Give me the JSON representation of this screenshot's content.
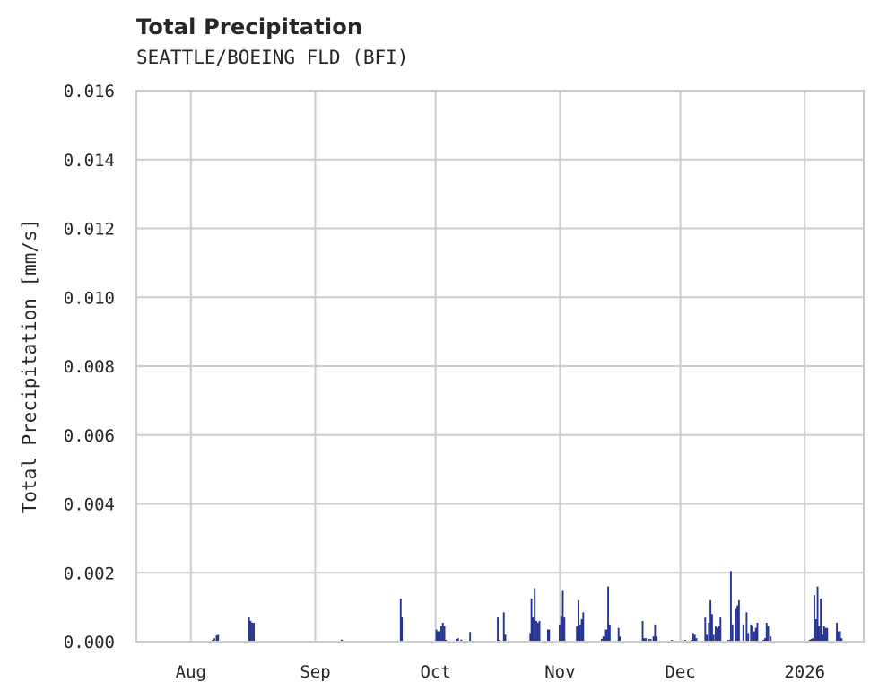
{
  "header": {
    "title": "Total Precipitation",
    "subtitle": "SEATTLE/BOEING FLD (BFI)"
  },
  "colors": {
    "bar": "#253494",
    "grid": "#cccccc",
    "axis": "#cccccc",
    "text": "#262626"
  },
  "chart_data": {
    "type": "bar",
    "title": "Total Precipitation",
    "subtitle": "SEATTLE/BOEING FLD (BFI)",
    "xlabel": "",
    "ylabel": "Total Precipitation [mm/s]",
    "ylim": [
      0,
      0.016
    ],
    "yticks": [
      "0.000",
      "0.002",
      "0.004",
      "0.006",
      "0.008",
      "0.010",
      "0.012",
      "0.014",
      "0.016"
    ],
    "xticks": [
      "Aug",
      "Sep",
      "Oct",
      "Nov",
      "Dec",
      "2026"
    ],
    "x_unit": "days since Aug 1",
    "xlim_days": [
      -13.6,
      167.7
    ],
    "xtick_days": [
      0,
      31,
      61,
      92,
      122,
      153
    ],
    "grid": true,
    "legend": null,
    "points": [
      [
        5.4,
        5e-05
      ],
      [
        5.8,
        0.0001
      ],
      [
        6.4,
        0.00018
      ],
      [
        6.8,
        0.0002
      ],
      [
        14.5,
        0.0007
      ],
      [
        14.9,
        0.0006
      ],
      [
        15.3,
        0.00055
      ],
      [
        15.7,
        0.00055
      ],
      [
        37.6,
        6e-05
      ],
      [
        52.3,
        0.00125
      ],
      [
        52.6,
        0.0007
      ],
      [
        61.2,
        0.00035
      ],
      [
        61.6,
        0.0003
      ],
      [
        62.0,
        0.0003
      ],
      [
        62.4,
        0.00045
      ],
      [
        62.8,
        0.00055
      ],
      [
        63.2,
        0.00045
      ],
      [
        63.6,
        5e-05
      ],
      [
        66.2,
        8e-05
      ],
      [
        66.6,
        0.0001
      ],
      [
        67.4,
        6e-05
      ],
      [
        69.6,
        0.00028
      ],
      [
        76.5,
        0.0007
      ],
      [
        76.9,
        5e-05
      ],
      [
        78.0,
        0.00085
      ],
      [
        78.4,
        0.0002
      ],
      [
        84.6,
        0.00025
      ],
      [
        84.9,
        0.00125
      ],
      [
        85.3,
        0.0007
      ],
      [
        85.7,
        0.00155
      ],
      [
        86.1,
        0.0006
      ],
      [
        86.5,
        0.00055
      ],
      [
        86.9,
        0.0006
      ],
      [
        89.0,
        0.00035
      ],
      [
        89.3,
        0.00035
      ],
      [
        91.9,
        0.0005
      ],
      [
        92.3,
        0.00075
      ],
      [
        92.7,
        0.0015
      ],
      [
        93.1,
        0.0007
      ],
      [
        96.2,
        0.00045
      ],
      [
        96.6,
        0.0012
      ],
      [
        97.0,
        0.0005
      ],
      [
        97.4,
        0.00065
      ],
      [
        97.8,
        0.00085
      ],
      [
        102.4,
        8e-05
      ],
      [
        102.8,
        0.00015
      ],
      [
        103.2,
        0.00035
      ],
      [
        103.6,
        0.00035
      ],
      [
        104.0,
        0.0016
      ],
      [
        104.4,
        0.0005
      ],
      [
        106.6,
        0.0004
      ],
      [
        106.9,
        0.00015
      ],
      [
        112.6,
        0.0006
      ],
      [
        113.0,
        0.0001
      ],
      [
        113.4,
        0.0001
      ],
      [
        114.1,
        8e-05
      ],
      [
        114.6,
        8e-05
      ],
      [
        115.3,
        0.00015
      ],
      [
        115.7,
        0.0005
      ],
      [
        116.1,
        0.00015
      ],
      [
        119.9,
        5e-05
      ],
      [
        123.2,
        5e-05
      ],
      [
        124.8,
        5e-05
      ],
      [
        125.2,
        0.00025
      ],
      [
        125.6,
        0.0002
      ],
      [
        126.0,
        0.0001
      ],
      [
        128.2,
        0.0007
      ],
      [
        128.6,
        0.0002
      ],
      [
        129.1,
        0.00055
      ],
      [
        129.5,
        0.0012
      ],
      [
        129.9,
        0.0008
      ],
      [
        130.3,
        0.0002
      ],
      [
        130.8,
        0.00045
      ],
      [
        131.2,
        0.0004
      ],
      [
        131.6,
        0.00045
      ],
      [
        132.0,
        0.0007
      ],
      [
        133.8,
        5e-05
      ],
      [
        134.2,
        5e-05
      ],
      [
        134.6,
        0.00205
      ],
      [
        135.0,
        0.0005
      ],
      [
        135.8,
        0.00095
      ],
      [
        136.2,
        0.00105
      ],
      [
        136.6,
        0.0012
      ],
      [
        137.7,
        0.0005
      ],
      [
        138.5,
        0.00085
      ],
      [
        138.9,
        0.00025
      ],
      [
        139.6,
        0.0005
      ],
      [
        140.0,
        0.00045
      ],
      [
        140.4,
        0.0003
      ],
      [
        140.8,
        0.0004
      ],
      [
        141.2,
        0.00055
      ],
      [
        142.7,
        5e-05
      ],
      [
        143.1,
        0.0001
      ],
      [
        143.5,
        0.00055
      ],
      [
        143.9,
        0.00045
      ],
      [
        144.5,
        0.00015
      ],
      [
        154.2,
        5e-05
      ],
      [
        154.6,
        8e-05
      ],
      [
        155.0,
        0.0001
      ],
      [
        155.4,
        0.00135
      ],
      [
        155.8,
        0.00065
      ],
      [
        156.2,
        0.0016
      ],
      [
        156.6,
        0.00045
      ],
      [
        157.0,
        0.00125
      ],
      [
        157.4,
        0.0002
      ],
      [
        157.8,
        0.00045
      ],
      [
        158.2,
        0.0004
      ],
      [
        158.6,
        0.0004
      ],
      [
        161.0,
        0.00055
      ],
      [
        161.4,
        0.0003
      ],
      [
        161.8,
        0.0003
      ],
      [
        162.2,
        0.0001
      ]
    ]
  }
}
